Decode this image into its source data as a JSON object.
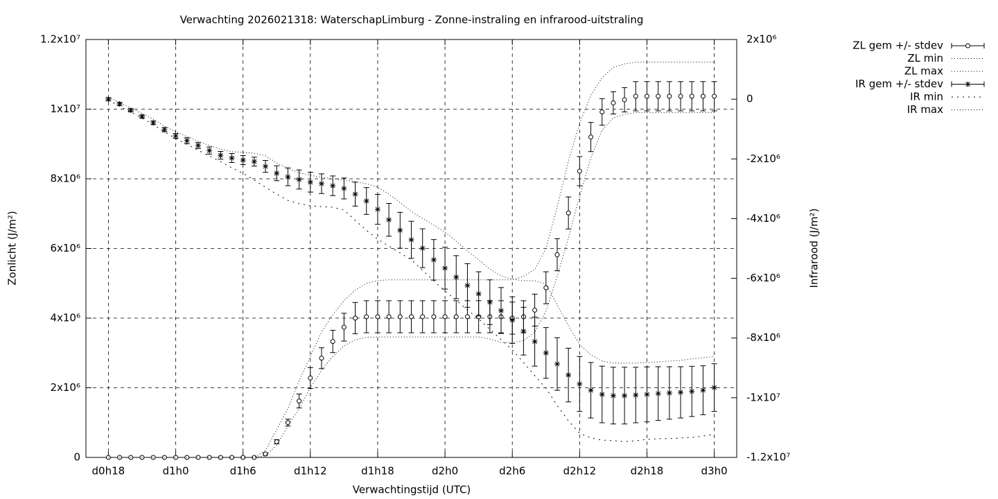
{
  "chart_data": {
    "type": "errorbar-line",
    "title": "Verwachting 2026021318: WaterschapLimburg - Zonne-instraling en infrarood-uitstraling",
    "xlabel": "Verwachtingstijd (UTC)",
    "ylabel": "Zonlicht (J/m²)",
    "y2label": "Infrarood (J/m²)",
    "categories": [
      "d0h18",
      null,
      null,
      null,
      null,
      null,
      "d1h0",
      null,
      null,
      null,
      null,
      null,
      "d1h6",
      null,
      null,
      null,
      null,
      null,
      "d1h12",
      null,
      null,
      null,
      null,
      null,
      "d1h18",
      null,
      null,
      null,
      null,
      null,
      "d2h0",
      null,
      null,
      null,
      null,
      null,
      "d2h6",
      null,
      null,
      null,
      null,
      null,
      "d2h12",
      null,
      null,
      null,
      null,
      null,
      "d2h18",
      null,
      null,
      null,
      null,
      null,
      "d3h0"
    ],
    "ylim": [
      0,
      12000000.0
    ],
    "yticks": [
      0,
      {
        "value": 2000000.0,
        "label": "2x10⁶"
      },
      {
        "value": 4000000.0,
        "label": "4x10⁶"
      },
      {
        "value": 6000000.0,
        "label": "6x10⁶"
      },
      {
        "value": 8000000.0,
        "label": "8x10⁶"
      },
      {
        "value": 10000000.0,
        "label": "1x10⁷"
      },
      {
        "value": 12000000.0,
        "label": "1.2x10⁷"
      }
    ],
    "y2lim": [
      -12000000.0,
      2000000.0
    ],
    "y2ticks": [
      {
        "value": -12000000.0,
        "label": "-1.2x10⁷"
      },
      {
        "value": -10000000.0,
        "label": "-1x10⁷"
      },
      {
        "value": -8000000.0,
        "label": "-8x10⁶"
      },
      {
        "value": -6000000.0,
        "label": "-6x10⁶"
      },
      {
        "value": -4000000.0,
        "label": "-4x10⁶"
      },
      {
        "value": -2000000.0,
        "label": "-2x10⁶"
      },
      0,
      {
        "value": 2000000.0,
        "label": "2x10⁶"
      }
    ],
    "grid": true,
    "legend": "outside-top-right",
    "series": [
      {
        "name": "ZL gem +/- stdev",
        "color": "#000000",
        "style": "errorbars",
        "marker": "circle",
        "axis": "y",
        "values": [
          0,
          0,
          0,
          0,
          0,
          0,
          0,
          0,
          0,
          0,
          0,
          0,
          0,
          0,
          100000.0,
          450000.0,
          1000000.0,
          1620000.0,
          2280000.0,
          2850000.0,
          3330000.0,
          3740000.0,
          4000000.0,
          4040000.0,
          4040000.0,
          4040000.0,
          4040000.0,
          4040000.0,
          4040000.0,
          4040000.0,
          4040000.0,
          4040000.0,
          4040000.0,
          4040000.0,
          4040000.0,
          4040000.0,
          4000000.0,
          4040000.0,
          4230000.0,
          4870000.0,
          5820000.0,
          7020000.0,
          8220000.0,
          9200000.0,
          9920000.0,
          10180000.0,
          10270000.0,
          10370000.0,
          10370000.0,
          10370000.0,
          10370000.0,
          10370000.0,
          10370000.0,
          10370000.0,
          10370000.0
        ],
        "errors": [
          0,
          0,
          0,
          0,
          0,
          0,
          0,
          0,
          0,
          0,
          0,
          0,
          0,
          0,
          30000.0,
          60000.0,
          100000.0,
          200000.0,
          300000.0,
          300000.0,
          320000.0,
          400000.0,
          450000.0,
          460000.0,
          460000.0,
          460000.0,
          460000.0,
          460000.0,
          460000.0,
          460000.0,
          460000.0,
          460000.0,
          460000.0,
          460000.0,
          460000.0,
          460000.0,
          460000.0,
          460000.0,
          460000.0,
          460000.0,
          460000.0,
          460000.0,
          420000.0,
          420000.0,
          380000.0,
          320000.0,
          350000.0,
          420000.0,
          420000.0,
          420000.0,
          420000.0,
          420000.0,
          420000.0,
          420000.0,
          420000.0
        ]
      },
      {
        "name": "ZL min",
        "color": "#000000",
        "style": "dotted",
        "axis": "y",
        "values": [
          0,
          0,
          0,
          0,
          0,
          0,
          0,
          0,
          0,
          0,
          0,
          0,
          0,
          0,
          50000.0,
          350000.0,
          900000.0,
          1400000.0,
          2000000.0,
          2500000.0,
          2900000.0,
          3200000.0,
          3380000.0,
          3450000.0,
          3460000.0,
          3460000.0,
          3460000.0,
          3460000.0,
          3460000.0,
          3460000.0,
          3460000.0,
          3460000.0,
          3460000.0,
          3460000.0,
          3400000.0,
          3300000.0,
          3300000.0,
          3350000.0,
          3600000.0,
          4200000.0,
          5200000.0,
          6300000.0,
          7500000.0,
          8600000.0,
          9400000.0,
          9750000.0,
          9850000.0,
          9900000.0,
          9900000.0,
          9900000.0,
          9900000.0,
          9900000.0,
          9900000.0,
          9900000.0,
          9900000.0
        ]
      },
      {
        "name": "ZL max",
        "color": "#000000",
        "style": "dotted",
        "axis": "y",
        "values": [
          0,
          0,
          0,
          0,
          0,
          0,
          0,
          0,
          0,
          0,
          0,
          0,
          0,
          0,
          200000.0,
          800000.0,
          1400000.0,
          2200000.0,
          2900000.0,
          3600000.0,
          4100000.0,
          4500000.0,
          4800000.0,
          5000000.0,
          5080000.0,
          5100000.0,
          5100000.0,
          5100000.0,
          5100000.0,
          5100000.0,
          5100000.0,
          5100000.0,
          5100000.0,
          5100000.0,
          5100000.0,
          5100000.0,
          5100000.0,
          5200000.0,
          5400000.0,
          6000000.0,
          7200000.0,
          8500000.0,
          9600000.0,
          10400000.0,
          10900000.0,
          11200000.0,
          11300000.0,
          11350000.0,
          11350000.0,
          11350000.0,
          11350000.0,
          11350000.0,
          11350000.0,
          11350000.0,
          11350000.0
        ]
      },
      {
        "name": "IR gem +/- stdev",
        "color": "#000000",
        "style": "errorbars",
        "marker": "star",
        "axis": "y2",
        "values": [
          0,
          -160000.0,
          -370000.0,
          -580000.0,
          -790000.0,
          -1020000.0,
          -1230000.0,
          -1390000.0,
          -1550000.0,
          -1720000.0,
          -1880000.0,
          -1970000.0,
          -2040000.0,
          -2090000.0,
          -2250000.0,
          -2480000.0,
          -2600000.0,
          -2690000.0,
          -2780000.0,
          -2830000.0,
          -2900000.0,
          -2990000.0,
          -3180000.0,
          -3410000.0,
          -3690000.0,
          -4040000.0,
          -4390000.0,
          -4710000.0,
          -4990000.0,
          -5380000.0,
          -5660000.0,
          -5960000.0,
          -6240000.0,
          -6520000.0,
          -6800000.0,
          -7080000.0,
          -7400000.0,
          -7770000.0,
          -8120000.0,
          -8500000.0,
          -8870000.0,
          -9240000.0,
          -9540000.0,
          -9750000.0,
          -9890000.0,
          -9930000.0,
          -9930000.0,
          -9910000.0,
          -9890000.0,
          -9860000.0,
          -9840000.0,
          -9820000.0,
          -9790000.0,
          -9750000.0,
          -9660000.0
        ],
        "errors": [
          50000.0,
          50000.0,
          50000.0,
          50000.0,
          60000.0,
          70000.0,
          80000.0,
          100000.0,
          100000.0,
          120000.0,
          130000.0,
          150000.0,
          150000.0,
          150000.0,
          200000.0,
          250000.0,
          300000.0,
          320000.0,
          330000.0,
          330000.0,
          330000.0,
          350000.0,
          400000.0,
          450000.0,
          500000.0,
          550000.0,
          600000.0,
          620000.0,
          650000.0,
          680000.0,
          700000.0,
          720000.0,
          730000.0,
          740000.0,
          750000.0,
          770000.0,
          780000.0,
          800000.0,
          820000.0,
          850000.0,
          880000.0,
          900000.0,
          920000.0,
          930000.0,
          950000.0,
          950000.0,
          950000.0,
          930000.0,
          920000.0,
          900000.0,
          880000.0,
          860000.0,
          840000.0,
          820000.0,
          800000.0
        ]
      },
      {
        "name": "IR min",
        "color": "#000000",
        "style": "sparse-dotted",
        "axis": "y2",
        "values": [
          -40000.0,
          -230000.0,
          -440000.0,
          -620000.0,
          -860000.0,
          -1090000.0,
          -1320000.0,
          -1510000.0,
          -1710000.0,
          -1900000.0,
          -2090000.0,
          -2300000.0,
          -2480000.0,
          -2710000.0,
          -2950000.0,
          -3180000.0,
          -3390000.0,
          -3500000.0,
          -3570000.0,
          -3600000.0,
          -3620000.0,
          -3710000.0,
          -4060000.0,
          -4390000.0,
          -4690000.0,
          -4920000.0,
          -5150000.0,
          -5380000.0,
          -5730000.0,
          -6080000.0,
          -6430000.0,
          -6730000.0,
          -7060000.0,
          -7360000.0,
          -7710000.0,
          -8050000.0,
          -8400000.0,
          -8820000.0,
          -9260000.0,
          -9680000.0,
          -10260000.0,
          -10770000.0,
          -11190000.0,
          -11350000.0,
          -11420000.0,
          -11440000.0,
          -11470000.0,
          -11440000.0,
          -11400000.0,
          -11370000.0,
          -11370000.0,
          -11350000.0,
          -11330000.0,
          -11280000.0,
          -11230000.0
        ]
      },
      {
        "name": "IR max",
        "color": "#000000",
        "style": "dotted",
        "axis": "y2",
        "values": [
          70000.0,
          -110000.0,
          -300000.0,
          -480000.0,
          -670000.0,
          -900000.0,
          -1090000.0,
          -1250000.0,
          -1410000.0,
          -1550000.0,
          -1670000.0,
          -1760000.0,
          -1780000.0,
          -1810000.0,
          -1900000.0,
          -2130000.0,
          -2320000.0,
          -2460000.0,
          -2550000.0,
          -2620000.0,
          -2670000.0,
          -2710000.0,
          -2760000.0,
          -2830000.0,
          -2950000.0,
          -3180000.0,
          -3460000.0,
          -3760000.0,
          -3990000.0,
          -4220000.0,
          -4450000.0,
          -4760000.0,
          -5080000.0,
          -5380000.0,
          -5690000.0,
          -5920000.0,
          -6030000.0,
          -6080000.0,
          -6080000.0,
          -6200000.0,
          -6890000.0,
          -7590000.0,
          -8220000.0,
          -8560000.0,
          -8770000.0,
          -8840000.0,
          -8840000.0,
          -8840000.0,
          -8820000.0,
          -8800000.0,
          -8770000.0,
          -8750000.0,
          -8700000.0,
          -8660000.0,
          -8610000.0
        ]
      }
    ]
  }
}
